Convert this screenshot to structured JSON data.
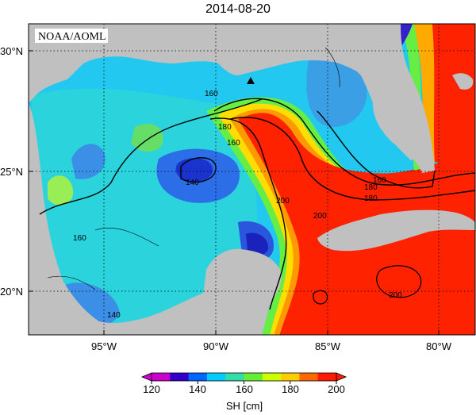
{
  "title": "2014-08-20",
  "credit": "NOAA/AOML",
  "lat_ticks": [
    "30°N",
    "25°N",
    "20°N"
  ],
  "lon_ticks": [
    "95°W",
    "90°W",
    "85°W",
    "80°W"
  ],
  "contour_labels": [
    "160",
    "180",
    "160",
    "140",
    "180",
    "200",
    "160",
    "180",
    "200",
    "160",
    "200",
    "140"
  ],
  "colorbar": {
    "ticks": [
      "120",
      "140",
      "160",
      "180",
      "200"
    ],
    "label": "SH [cm]",
    "colors": [
      "#cc00cc",
      "#3300cc",
      "#0066ff",
      "#00ccff",
      "#33ddaa",
      "#66ee33",
      "#ccff00",
      "#ffcc00",
      "#ff6600",
      "#ff1a00"
    ]
  },
  "land_color": "#c0c0c0"
}
